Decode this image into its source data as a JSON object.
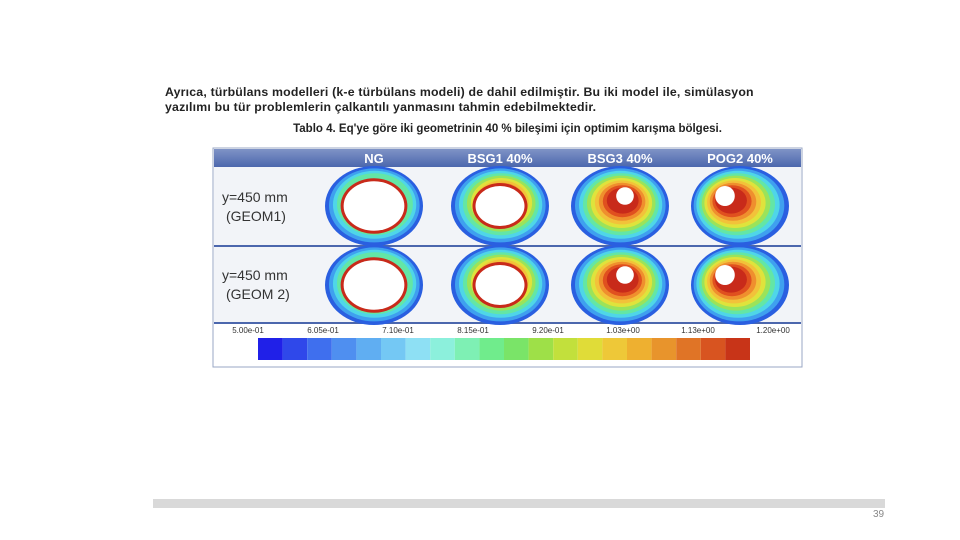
{
  "paragraph": {
    "lines": [
      "Ayrıca, türbülans modelleri (k-e türbülans modeli) de dahil edilmiştir. Bu iki model ile, simülasyon",
      "yazılımı bu tür problemlerin çalkantılı yanmasını tahmin edebilmektedir."
    ]
  },
  "caption": "Tablo 4. Eq'ye göre iki geometrinin 40 % bileşimi için optimim karışma bölgesi.",
  "figure": {
    "column_headers": [
      "NG",
      "BSG1 40%",
      "BSG3 40%",
      "POG2 40%"
    ],
    "rows": [
      {
        "label": [
          "y=450 mm",
          "(GEOM1)"
        ]
      },
      {
        "label": [
          "y=450 mm",
          "(GEOM 2)"
        ]
      }
    ],
    "colorbar_labels": [
      "5.00e-01",
      "6.05e-01",
      "7.10e-01",
      "8.15e-01",
      "9.20e-01",
      "1.03e+00",
      "1.13e+00",
      "1.20e+00"
    ]
  },
  "page_number": "39"
}
